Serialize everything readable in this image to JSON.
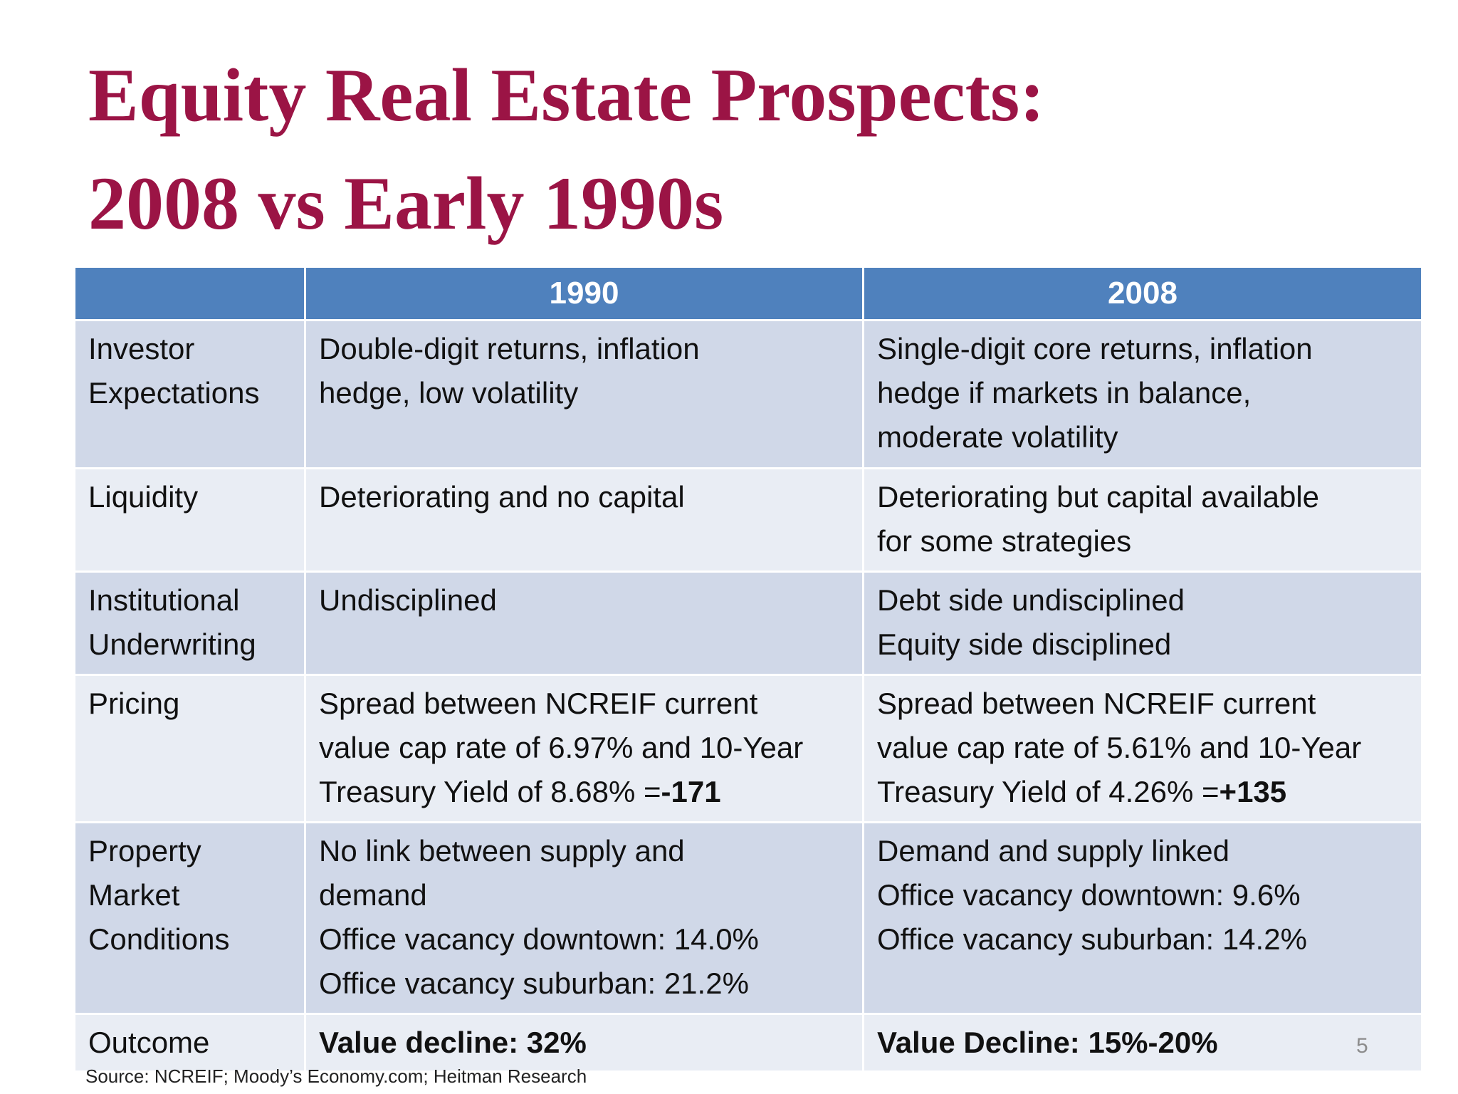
{
  "slide": {
    "title_line1": "Equity Real Estate Prospects:",
    "title_line2": "2008 vs Early 1990s",
    "page_number": "5",
    "source": "Source: NCREIF; Moody’s Economy.com; Heitman Research"
  },
  "table": {
    "headers": [
      "",
      "1990",
      "2008"
    ],
    "rows": [
      {
        "label": [
          "Investor",
          "Expectations"
        ],
        "col1990": [
          "Double-digit returns, inflation",
          "hedge, low volatility"
        ],
        "col2008": [
          "Single-digit core returns, inflation",
          "hedge if markets in balance,",
          "moderate volatility"
        ]
      },
      {
        "label": [
          "Liquidity"
        ],
        "col1990": [
          "Deteriorating and no capital"
        ],
        "col2008": [
          "Deteriorating but capital available",
          "for some strategies"
        ]
      },
      {
        "label": [
          "Institutional",
          "Underwriting"
        ],
        "col1990": [
          "Undisciplined"
        ],
        "col2008": [
          "Debt side undisciplined",
          "Equity side disciplined"
        ]
      },
      {
        "label": [
          "Pricing"
        ],
        "col1990": [
          "Spread between NCREIF current",
          "value cap rate of 6.97% and 10-Year"
        ],
        "col1990_last_prefix": "Treasury Yield of 8.68% =",
        "col1990_last_bold": "-171",
        "col2008": [
          "Spread between NCREIF current",
          "value cap rate of 5.61% and 10-Year"
        ],
        "col2008_last_prefix": "Treasury Yield of 4.26% =",
        "col2008_last_bold": "+135"
      },
      {
        "label": [
          "Property",
          "Market",
          "Conditions"
        ],
        "col1990": [
          "No link between supply and",
          "demand",
          "Office vacancy downtown: 14.0%",
          "Office vacancy suburban: 21.2%"
        ],
        "col2008": [
          "Demand and supply linked",
          "Office vacancy downtown: 9.6%",
          "Office vacancy suburban: 14.2%"
        ]
      },
      {
        "label": [
          "Outcome"
        ],
        "col1990": [
          "Value decline: 32%"
        ],
        "col2008": [
          "Value Decline: 15%-20%"
        ]
      }
    ]
  }
}
